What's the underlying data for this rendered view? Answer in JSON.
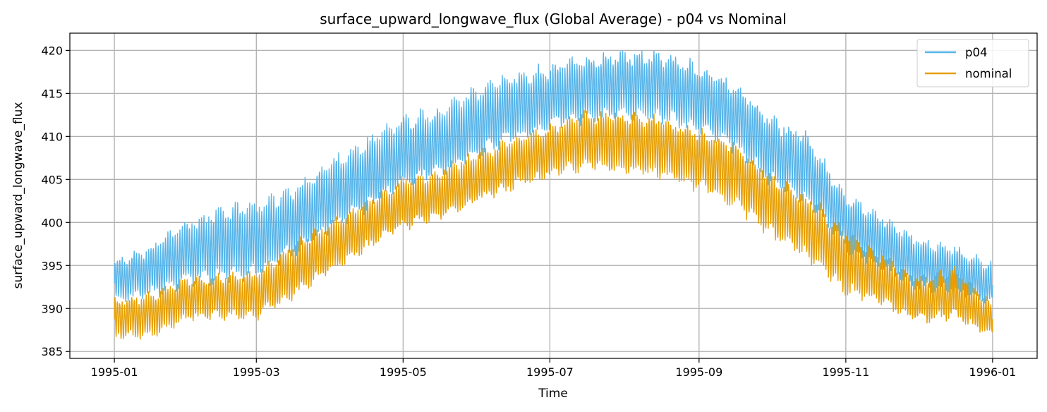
{
  "chart_data": {
    "type": "line",
    "title": "surface_upward_longwave_flux (Global Average) - p04 vs Nominal",
    "xlabel": "Time",
    "ylabel": "surface_upward_longwave_flux",
    "x_ticks": [
      "1995-01",
      "1995-03",
      "1995-05",
      "1995-07",
      "1995-09",
      "1995-11",
      "1996-01"
    ],
    "x_tick_days": [
      0,
      59,
      120,
      181,
      243,
      304,
      365
    ],
    "y_ticks": [
      385,
      390,
      395,
      400,
      405,
      410,
      415,
      420
    ],
    "xlim": [
      -18.5,
      383.5
    ],
    "ylim": [
      384.2,
      422.0
    ],
    "grid": true,
    "legend_position": "top-right",
    "series": [
      {
        "name": "p04",
        "color": "#56B4E9",
        "days": [
          0,
          15,
          31,
          45,
          59,
          75,
          90,
          105,
          120,
          135,
          151,
          165,
          181,
          195,
          212,
          227,
          243,
          258,
          273,
          288,
          304,
          320,
          334,
          349,
          365
        ],
        "upper": [
          395.5,
          397.0,
          400.0,
          401.5,
          402.0,
          404.0,
          407.0,
          409.5,
          412.0,
          413.0,
          415.5,
          417.0,
          418.0,
          419.0,
          419.5,
          419.5,
          418.0,
          416.0,
          412.0,
          410.0,
          403.0,
          400.5,
          398.0,
          397.0,
          395.0
        ],
        "lower": [
          391.0,
          391.5,
          393.0,
          393.5,
          394.0,
          396.5,
          399.5,
          401.5,
          404.5,
          405.5,
          408.0,
          409.5,
          411.0,
          412.0,
          412.5,
          412.0,
          410.5,
          408.5,
          404.5,
          402.5,
          397.0,
          394.5,
          392.5,
          392.0,
          390.5
        ]
      },
      {
        "name": "nominal",
        "color": "#E69F00",
        "days": [
          0,
          15,
          31,
          45,
          59,
          75,
          90,
          105,
          120,
          135,
          151,
          165,
          181,
          195,
          212,
          227,
          243,
          258,
          273,
          288,
          304,
          320,
          334,
          349,
          365
        ],
        "upper": [
          391.0,
          391.5,
          393.5,
          393.8,
          394.0,
          397.5,
          400.0,
          402.5,
          405.0,
          406.0,
          408.0,
          409.5,
          411.0,
          412.5,
          412.5,
          412.0,
          410.5,
          409.0,
          405.5,
          403.0,
          399.0,
          396.0,
          393.5,
          394.5,
          390.5
        ],
        "lower": [
          386.5,
          386.8,
          388.8,
          389.0,
          389.0,
          391.5,
          394.5,
          397.0,
          399.5,
          400.5,
          402.5,
          404.0,
          405.5,
          406.5,
          406.0,
          405.5,
          404.0,
          402.0,
          398.5,
          396.0,
          392.0,
          390.5,
          388.5,
          389.0,
          386.8
        ]
      }
    ]
  }
}
